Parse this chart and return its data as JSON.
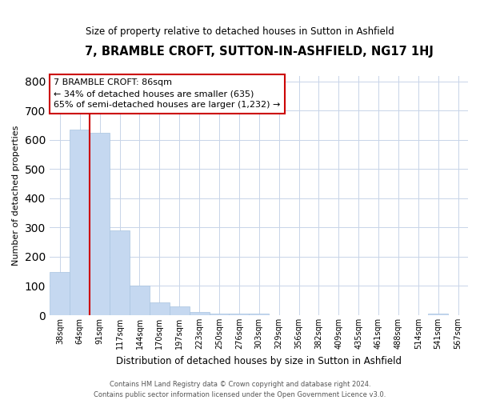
{
  "title": "7, BRAMBLE CROFT, SUTTON-IN-ASHFIELD, NG17 1HJ",
  "subtitle": "Size of property relative to detached houses in Sutton in Ashfield",
  "xlabel": "Distribution of detached houses by size in Sutton in Ashfield",
  "ylabel": "Number of detached properties",
  "bar_labels": [
    "38sqm",
    "64sqm",
    "91sqm",
    "117sqm",
    "144sqm",
    "170sqm",
    "197sqm",
    "223sqm",
    "250sqm",
    "276sqm",
    "303sqm",
    "329sqm",
    "356sqm",
    "382sqm",
    "409sqm",
    "435sqm",
    "461sqm",
    "488sqm",
    "514sqm",
    "541sqm",
    "567sqm"
  ],
  "bar_values": [
    148,
    635,
    625,
    290,
    100,
    45,
    30,
    12,
    5,
    5,
    5,
    0,
    0,
    0,
    0,
    0,
    0,
    0,
    0,
    5,
    0
  ],
  "bar_color": "#c5d8f0",
  "bar_edge_color": "#a8c4e0",
  "property_line_color": "#cc0000",
  "annotation_title": "7 BRAMBLE CROFT: 86sqm",
  "annotation_line2": "← 34% of detached houses are smaller (635)",
  "annotation_line3": "65% of semi-detached houses are larger (1,232) →",
  "annotation_box_color": "#ffffff",
  "annotation_box_edge": "#cc0000",
  "ylim": [
    0,
    820
  ],
  "yticks": [
    0,
    100,
    200,
    300,
    400,
    500,
    600,
    700,
    800
  ],
  "footer1": "Contains HM Land Registry data © Crown copyright and database right 2024.",
  "footer2": "Contains public sector information licensed under the Open Government Licence v3.0.",
  "bg_color": "#ffffff",
  "grid_color": "#c8d4e8"
}
